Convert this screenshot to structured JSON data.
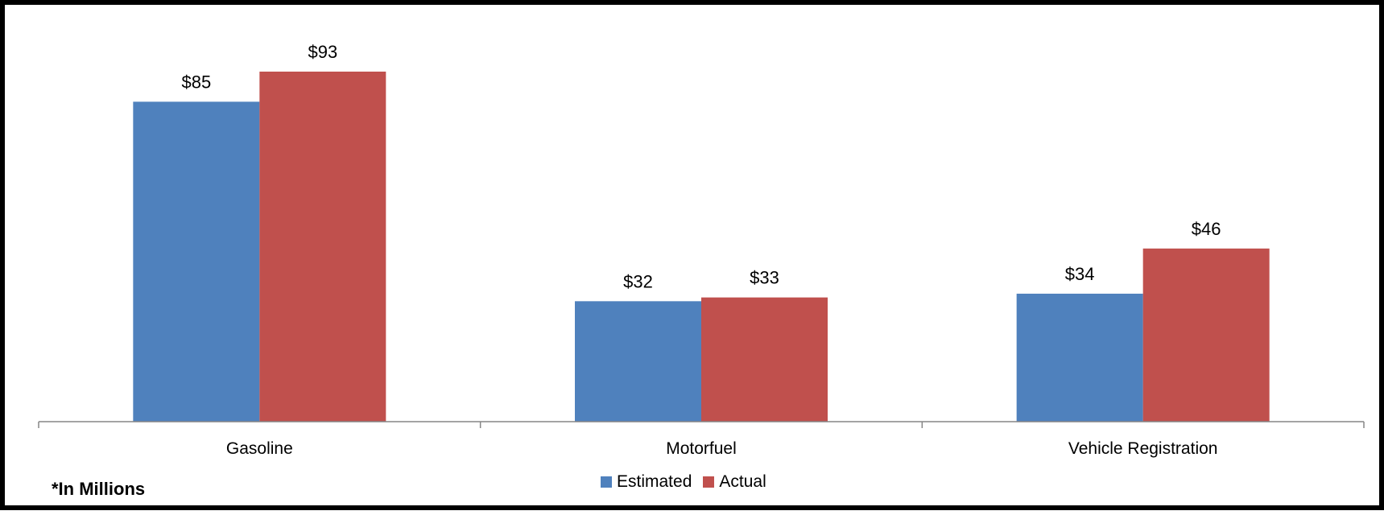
{
  "chart_data": {
    "type": "bar",
    "categories": [
      "Gasoline",
      "Motorfuel",
      "Vehicle Registration"
    ],
    "series": [
      {
        "name": "Estimated",
        "values": [
          85,
          32,
          34
        ],
        "labels": [
          "$85",
          "$32",
          "$34"
        ],
        "color": "#4F81BD"
      },
      {
        "name": "Actual",
        "values": [
          93,
          33,
          46
        ],
        "labels": [
          "$93",
          "$33",
          "$46"
        ],
        "color": "#C0504D"
      }
    ],
    "note": "*In Millions",
    "ylim": [
      0,
      93
    ],
    "grid": false,
    "legend_position": "bottom"
  }
}
